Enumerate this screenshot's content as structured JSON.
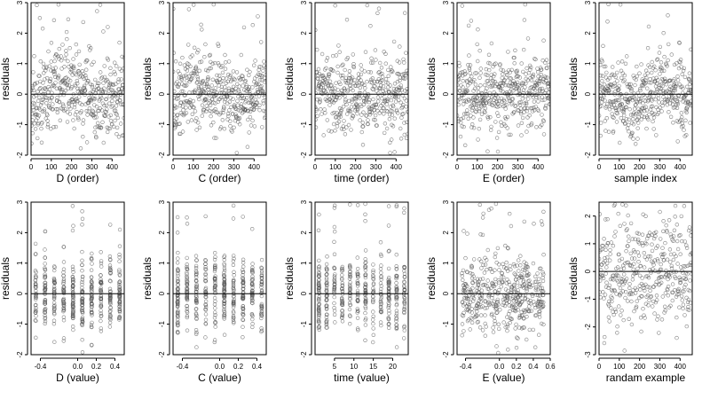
{
  "chart_data": [
    {
      "type": "scatter",
      "xlabel": "D (order)",
      "ylabel": "residuals",
      "xlim": [
        0,
        460
      ],
      "ylim": [
        -2,
        3
      ],
      "xticks": [
        "0",
        "100",
        "200",
        "300",
        "400"
      ],
      "yticks": [
        "-2",
        "-1",
        "0",
        "1",
        "2",
        "3"
      ],
      "zero_line": true,
      "x_kind": "order",
      "y_pattern": "wave",
      "n": 460,
      "seed": 11
    },
    {
      "type": "scatter",
      "xlabel": "C (order)",
      "ylabel": "residuals",
      "xlim": [
        0,
        460
      ],
      "ylim": [
        -2,
        3
      ],
      "xticks": [
        "0",
        "100",
        "200",
        "300",
        "400"
      ],
      "yticks": [
        "-2",
        "-1",
        "0",
        "1",
        "2",
        "3"
      ],
      "zero_line": true,
      "x_kind": "order",
      "y_pattern": "wave",
      "n": 460,
      "seed": 12
    },
    {
      "type": "scatter",
      "xlabel": "time (order)",
      "ylabel": "residuals",
      "xlim": [
        0,
        460
      ],
      "ylim": [
        -2,
        3
      ],
      "xticks": [
        "0",
        "100",
        "200",
        "300",
        "400"
      ],
      "yticks": [
        "-2",
        "-1",
        "0",
        "1",
        "2",
        "3"
      ],
      "zero_line": true,
      "x_kind": "order",
      "y_pattern": "noise",
      "n": 460,
      "seed": 13
    },
    {
      "type": "scatter",
      "xlabel": "E (order)",
      "ylabel": "residuals",
      "xlim": [
        0,
        460
      ],
      "ylim": [
        -2,
        3
      ],
      "xticks": [
        "0",
        "100",
        "200",
        "300",
        "400"
      ],
      "yticks": [
        "-2",
        "-1",
        "0",
        "1",
        "2",
        "3"
      ],
      "zero_line": true,
      "x_kind": "order",
      "y_pattern": "noise",
      "n": 460,
      "seed": 14
    },
    {
      "type": "scatter",
      "xlabel": "sample index",
      "ylabel": "residuals",
      "xlim": [
        0,
        460
      ],
      "ylim": [
        -2,
        3
      ],
      "xticks": [
        "0",
        "100",
        "200",
        "300",
        "400"
      ],
      "yticks": [
        "-2",
        "-1",
        "0",
        "1",
        "2",
        "3"
      ],
      "zero_line": true,
      "x_kind": "order",
      "y_pattern": "wave",
      "n": 460,
      "seed": 15
    },
    {
      "type": "scatter",
      "xlabel": "D (value)",
      "ylabel": "residuals",
      "xlim": [
        -0.5,
        0.5
      ],
      "ylim": [
        -2,
        3
      ],
      "xticks": [
        "-0.4",
        "0.0",
        "0.2",
        "0.4"
      ],
      "yticks": [
        "-2",
        "-1",
        "0",
        "1",
        "2",
        "3"
      ],
      "zero_line": true,
      "x_kind": "columns",
      "x_columns": [
        -0.45,
        -0.35,
        -0.25,
        -0.15,
        -0.05,
        0.05,
        0.15,
        0.25,
        0.35,
        0.45
      ],
      "y_pattern": "noise",
      "n": 460,
      "seed": 21
    },
    {
      "type": "scatter",
      "xlabel": "C (value)",
      "ylabel": "residuals",
      "xlim": [
        -0.5,
        0.5
      ],
      "ylim": [
        -2,
        3
      ],
      "xticks": [
        "-0.4",
        "0.0",
        "0.2",
        "0.4"
      ],
      "yticks": [
        "-2",
        "-1",
        "0",
        "1",
        "2",
        "3"
      ],
      "zero_line": true,
      "x_kind": "columns",
      "x_columns": [
        -0.45,
        -0.35,
        -0.25,
        -0.15,
        -0.05,
        0.05,
        0.15,
        0.25,
        0.35,
        0.45
      ],
      "y_pattern": "noise",
      "n": 460,
      "seed": 22
    },
    {
      "type": "scatter",
      "xlabel": "time (value)",
      "ylabel": "residuals",
      "xlim": [
        0,
        24
      ],
      "ylim": [
        -2,
        3
      ],
      "xticks": [
        "5",
        "10",
        "15",
        "20"
      ],
      "yticks": [
        "-2",
        "-1",
        "0",
        "1",
        "2",
        "3"
      ],
      "zero_line": true,
      "x_kind": "columns",
      "x_columns": [
        1,
        3,
        5,
        7,
        9,
        11,
        13,
        15,
        17,
        19,
        21,
        23
      ],
      "y_pattern": "noise",
      "n": 460,
      "seed": 23
    },
    {
      "type": "scatter",
      "xlabel": "E (value)",
      "ylabel": "residuals",
      "xlim": [
        -0.5,
        0.6
      ],
      "ylim": [
        -2,
        3
      ],
      "xticks": [
        "-0.4",
        "0.0",
        "0.2",
        "0.4",
        "0.6"
      ],
      "yticks": [
        "-2",
        "-1",
        "0",
        "1",
        "2",
        "3"
      ],
      "zero_line": true,
      "x_kind": "uniform",
      "y_pattern": "noise",
      "n": 460,
      "seed": 24
    },
    {
      "type": "scatter",
      "xlabel": "randam example",
      "ylabel": "residuals",
      "xlim": [
        0,
        460
      ],
      "ylim": [
        -3,
        2.5
      ],
      "xticks": [
        "0",
        "100",
        "200",
        "300",
        "400"
      ],
      "yticks": [
        "-3",
        "-2",
        "-1",
        "0",
        "1",
        "2"
      ],
      "zero_line": true,
      "x_kind": "order",
      "y_pattern": "normal",
      "n": 400,
      "seed": 31
    }
  ]
}
